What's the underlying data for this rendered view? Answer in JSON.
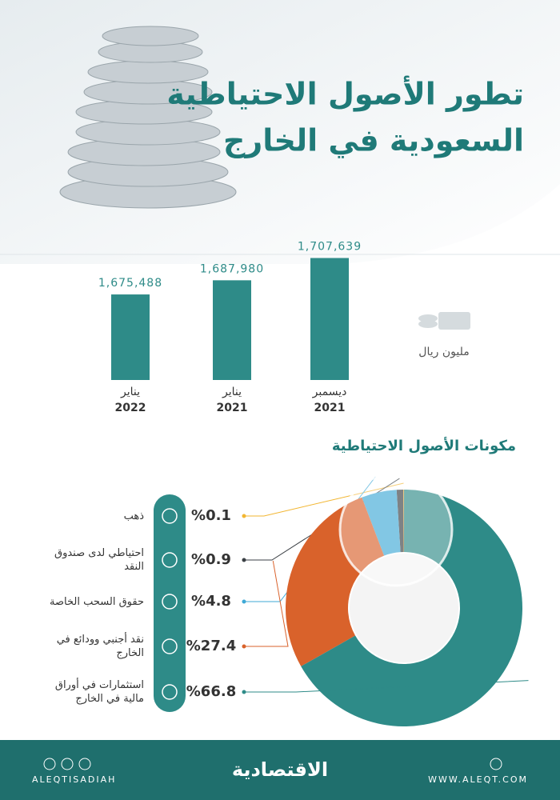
{
  "header": {
    "title_lines": [
      "تطور الأصول الاحتياطية",
      "السعودية في الخارج"
    ]
  },
  "chart_data": [
    {
      "type": "bar",
      "unit": "مليون ريال",
      "categories": [
        [
          "يناير",
          "2022"
        ],
        [
          "يناير",
          "2021"
        ],
        [
          "ديسمبر",
          "2021"
        ]
      ],
      "values": [
        1675488,
        1687980,
        1707639
      ],
      "value_labels": [
        "1,675,488",
        "1,687,980",
        "1,707,639"
      ],
      "color": "#2e8b88",
      "ylim": [
        1600000,
        1720000
      ]
    },
    {
      "type": "donut",
      "title": "مكونات الأصول الاحتياطية",
      "categories": [
        "ذهب",
        "احتياطي لدى صندوق النقد",
        "حقوق السحب الخاصة",
        "نقد أجنبي وودائع في الخارج",
        "استثمارات في أوراق مالية في الخارج"
      ],
      "values": [
        0.1,
        0.9,
        4.8,
        27.4,
        66.8
      ],
      "value_labels": [
        "%0.1",
        "%0.9",
        "%4.8",
        "%27.4",
        "%66.8"
      ],
      "colors": [
        "#f2b632",
        "#3a3f44",
        "#3fa9d6",
        "#d9622b",
        "#2e8b88"
      ]
    }
  ],
  "footer": {
    "handle": "ALEQTISADIAH",
    "logo": "الاقتصادية",
    "website": "WWW.ALEQT.COM"
  }
}
